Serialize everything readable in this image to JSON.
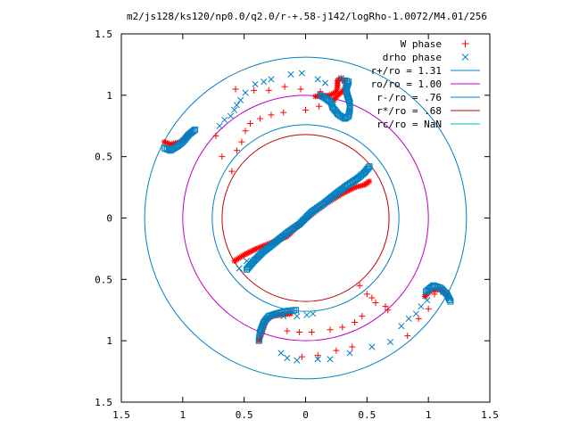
{
  "chart_data": {
    "type": "scatter",
    "title": "m2/js128/ks120/np0.0/q2.0/r-+.58-j142/logRho-1.0072/M4.01/256",
    "xlabel": "",
    "ylabel": "",
    "xlim": [
      -1.5,
      1.5
    ],
    "ylim": [
      -1.5,
      1.5
    ],
    "grid": false,
    "legend_position": "top-right",
    "x_ticks": [
      -1.5,
      -1,
      -0.5,
      0,
      0.5,
      1,
      1.5
    ],
    "x_tick_labels": [
      "1.5",
      "1",
      "0.5",
      "0",
      "0.5",
      "1",
      "1.5"
    ],
    "y_ticks": [
      1.5,
      1,
      0.5,
      0,
      -0.5,
      -1,
      -1.5
    ],
    "y_tick_labels": [
      "1.5",
      "1",
      "0.5",
      "0",
      "0.5",
      "1",
      "1.5"
    ],
    "legend": [
      {
        "label": "W phase",
        "marker": "plus",
        "color": "#ff0000"
      },
      {
        "label": "drho phase",
        "marker": "cross",
        "color": "#0080c0"
      },
      {
        "label": "r+/ro = 1.31",
        "marker": "line",
        "color": "#0080c0"
      },
      {
        "label": "ro/ro = 1.00",
        "marker": "line",
        "color": "#c000c0"
      },
      {
        "label": "r-/ro = .76",
        "marker": "line",
        "color": "#0080c0"
      },
      {
        "label": "r*/ro = .68",
        "marker": "line",
        "color": "#c00000"
      },
      {
        "label": "rc/ro = NaN",
        "marker": "line",
        "color": "#00c0c0"
      }
    ],
    "circles": [
      {
        "name": "r+/ro",
        "radius": 1.31,
        "color": "#0080c0"
      },
      {
        "name": "ro/ro",
        "radius": 1.0,
        "color": "#c000c0"
      },
      {
        "name": "r-/ro",
        "radius": 0.76,
        "color": "#0080c0"
      },
      {
        "name": "r*/ro",
        "radius": 0.68,
        "color": "#c00000"
      }
    ],
    "series": [
      {
        "name": "W phase",
        "description": "red plus / star markers",
        "color": "#ff0000",
        "points_sparse": [
          [
            -0.57,
            1.05
          ],
          [
            -0.42,
            1.04
          ],
          [
            -0.3,
            1.04
          ],
          [
            -0.17,
            1.07
          ],
          [
            -0.04,
            1.05
          ],
          [
            0.12,
            1.03
          ],
          [
            -0.73,
            0.67
          ],
          [
            -0.56,
            0.55
          ],
          [
            -0.52,
            0.62
          ],
          [
            -0.49,
            0.71
          ],
          [
            -0.45,
            0.77
          ],
          [
            -0.37,
            0.81
          ],
          [
            -0.28,
            0.84
          ],
          [
            -0.18,
            0.86
          ],
          [
            0.0,
            0.88
          ],
          [
            0.11,
            0.91
          ],
          [
            -0.6,
            0.38
          ],
          [
            -0.68,
            0.5
          ],
          [
            0.44,
            -0.55
          ],
          [
            0.5,
            -0.62
          ],
          [
            0.54,
            -0.65
          ],
          [
            0.57,
            -0.69
          ],
          [
            0.65,
            -0.72
          ],
          [
            0.67,
            -0.75
          ],
          [
            0.46,
            -0.8
          ],
          [
            0.4,
            -0.85
          ],
          [
            0.3,
            -0.89
          ],
          [
            0.2,
            -0.91
          ],
          [
            0.05,
            -0.93
          ],
          [
            -0.05,
            -0.93
          ],
          [
            -0.15,
            -0.92
          ],
          [
            0.38,
            -1.05
          ],
          [
            0.25,
            -1.08
          ],
          [
            0.1,
            -1.12
          ],
          [
            -0.03,
            -1.13
          ],
          [
            0.83,
            -0.96
          ],
          [
            0.92,
            -0.82
          ],
          [
            1.0,
            -0.74
          ],
          [
            1.05,
            -0.62
          ],
          [
            1.1,
            -0.6
          ]
        ],
        "curves": [
          [
            [
              -1.15,
              0.62
            ],
            [
              -1.1,
              0.6
            ],
            [
              -1.02,
              0.62
            ],
            [
              -0.93,
              0.7
            ]
          ],
          [
            [
              0.08,
              0.99
            ],
            [
              0.2,
              1.0
            ],
            [
              0.25,
              1.03
            ],
            [
              0.26,
              1.07
            ],
            [
              0.26,
              1.12
            ],
            [
              0.29,
              1.14
            ],
            [
              0.32,
              1.11
            ],
            [
              0.33,
              1.07
            ],
            [
              0.3,
              1.03
            ],
            [
              0.26,
              1.0
            ],
            [
              0.23,
              0.96
            ]
          ],
          [
            [
              -0.58,
              -0.35
            ],
            [
              -0.5,
              -0.3
            ],
            [
              -0.4,
              -0.25
            ],
            [
              -0.3,
              -0.21
            ],
            [
              -0.15,
              -0.15
            ],
            [
              -0.05,
              -0.05
            ],
            [
              0.05,
              0.03
            ],
            [
              0.17,
              0.12
            ],
            [
              0.3,
              0.2
            ],
            [
              0.4,
              0.25
            ],
            [
              0.48,
              0.27
            ],
            [
              0.52,
              0.3
            ]
          ],
          [
            [
              -0.38,
              -1.0
            ],
            [
              -0.35,
              -0.92
            ],
            [
              -0.32,
              -0.83
            ],
            [
              -0.27,
              -0.8
            ],
            [
              -0.2,
              -0.79
            ],
            [
              -0.12,
              -0.78
            ]
          ],
          [
            [
              0.97,
              -0.64
            ],
            [
              1.02,
              -0.59
            ],
            [
              1.1,
              -0.58
            ],
            [
              1.15,
              -0.62
            ],
            [
              1.16,
              -0.65
            ]
          ]
        ]
      },
      {
        "name": "drho phase",
        "description": "blue x / square markers",
        "color": "#0080c0",
        "points_sparse": [
          [
            -0.7,
            0.75
          ],
          [
            -0.66,
            0.8
          ],
          [
            -0.61,
            0.83
          ],
          [
            -0.58,
            0.88
          ],
          [
            -0.56,
            0.92
          ],
          [
            -0.53,
            0.96
          ],
          [
            -0.49,
            1.02
          ],
          [
            -0.41,
            1.09
          ],
          [
            -0.34,
            1.11
          ],
          [
            -0.28,
            1.13
          ],
          [
            -0.12,
            1.17
          ],
          [
            -0.03,
            1.18
          ],
          [
            0.1,
            1.13
          ],
          [
            0.16,
            1.1
          ],
          [
            0.29,
            1.14
          ],
          [
            0.69,
            -1.01
          ],
          [
            0.54,
            -1.05
          ],
          [
            0.36,
            -1.1
          ],
          [
            0.2,
            -1.15
          ],
          [
            0.1,
            -1.15
          ],
          [
            -0.07,
            -1.16
          ],
          [
            -0.15,
            -1.14
          ],
          [
            -0.2,
            -1.1
          ],
          [
            0.78,
            -0.88
          ],
          [
            0.84,
            -0.82
          ],
          [
            0.9,
            -0.78
          ],
          [
            0.94,
            -0.72
          ],
          [
            0.99,
            -0.67
          ],
          [
            -0.48,
            -0.35
          ],
          [
            -0.54,
            -0.41
          ],
          [
            -0.18,
            -0.8
          ],
          [
            -0.07,
            -0.8
          ],
          [
            0.01,
            -0.79
          ],
          [
            0.06,
            -0.78
          ]
        ],
        "curves": [
          [
            [
              -1.15,
              0.57
            ],
            [
              -1.1,
              0.55
            ],
            [
              -1.05,
              0.58
            ],
            [
              -1.0,
              0.62
            ],
            [
              -0.95,
              0.68
            ],
            [
              -0.9,
              0.72
            ]
          ],
          [
            [
              0.12,
              1.0
            ],
            [
              0.17,
              0.97
            ],
            [
              0.21,
              0.94
            ],
            [
              0.22,
              0.9
            ],
            [
              0.27,
              0.84
            ],
            [
              0.32,
              0.81
            ],
            [
              0.35,
              0.83
            ],
            [
              0.36,
              0.88
            ],
            [
              0.36,
              0.94
            ],
            [
              0.34,
              1.0
            ],
            [
              0.33,
              1.05
            ],
            [
              0.35,
              1.11
            ],
            [
              0.32,
              1.12
            ]
          ],
          [
            [
              -0.48,
              -0.42
            ],
            [
              -0.42,
              -0.35
            ],
            [
              -0.35,
              -0.28
            ],
            [
              -0.25,
              -0.2
            ],
            [
              -0.15,
              -0.12
            ],
            [
              -0.05,
              -0.05
            ],
            [
              0.05,
              0.05
            ],
            [
              0.15,
              0.12
            ],
            [
              0.25,
              0.2
            ],
            [
              0.33,
              0.26
            ],
            [
              0.42,
              0.32
            ],
            [
              0.48,
              0.37
            ],
            [
              0.52,
              0.42
            ]
          ],
          [
            [
              -0.38,
              -1.0
            ],
            [
              -0.37,
              -0.93
            ],
            [
              -0.34,
              -0.85
            ],
            [
              -0.3,
              -0.8
            ],
            [
              -0.24,
              -0.78
            ],
            [
              -0.16,
              -0.76
            ],
            [
              -0.08,
              -0.75
            ]
          ],
          [
            [
              0.98,
              -0.6
            ],
            [
              1.04,
              -0.55
            ],
            [
              1.1,
              -0.57
            ],
            [
              1.15,
              -0.62
            ],
            [
              1.18,
              -0.68
            ]
          ]
        ]
      }
    ]
  }
}
